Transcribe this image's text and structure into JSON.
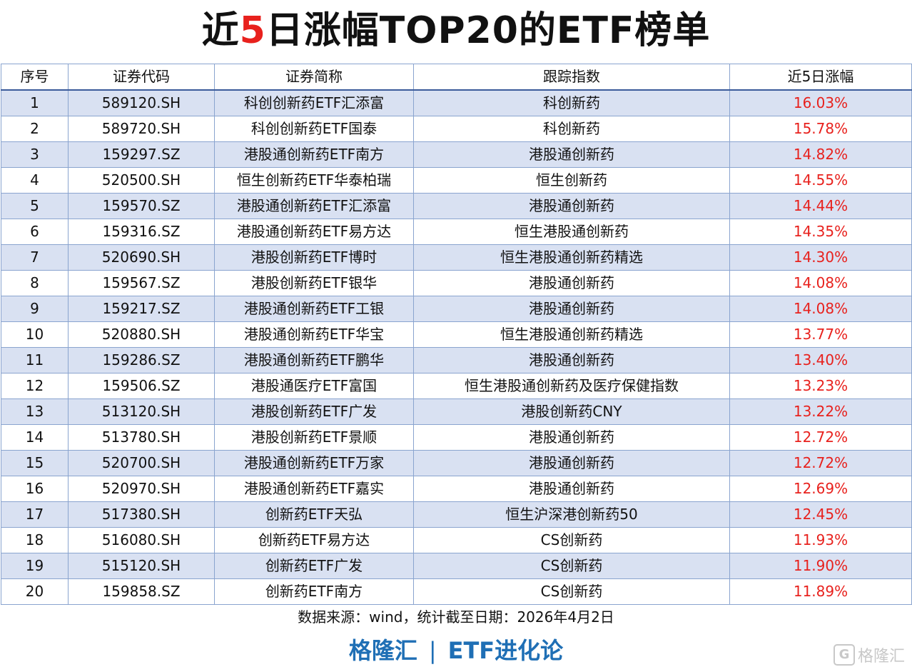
{
  "title": {
    "prefix": "近",
    "highlight": "5",
    "suffix": "日涨幅TOP20的ETF榜单"
  },
  "table": {
    "headers": [
      "序号",
      "证券代码",
      "证券简称",
      "跟踪指数",
      "近5日涨幅"
    ],
    "rows": [
      [
        "1",
        "589120.SH",
        "科创创新药ETF汇添富",
        "科创新药",
        "16.03%"
      ],
      [
        "2",
        "589720.SH",
        "科创创新药ETF国泰",
        "科创新药",
        "15.78%"
      ],
      [
        "3",
        "159297.SZ",
        "港股通创新药ETF南方",
        "港股通创新药",
        "14.82%"
      ],
      [
        "4",
        "520500.SH",
        "恒生创新药ETF华泰柏瑞",
        "恒生创新药",
        "14.55%"
      ],
      [
        "5",
        "159570.SZ",
        "港股通创新药ETF汇添富",
        "港股通创新药",
        "14.44%"
      ],
      [
        "6",
        "159316.SZ",
        "港股通创新药ETF易方达",
        "恒生港股通创新药",
        "14.35%"
      ],
      [
        "7",
        "520690.SH",
        "港股创新药ETF博时",
        "恒生港股通创新药精选",
        "14.30%"
      ],
      [
        "8",
        "159567.SZ",
        "港股创新药ETF银华",
        "港股通创新药",
        "14.08%"
      ],
      [
        "9",
        "159217.SZ",
        "港股通创新药ETF工银",
        "港股通创新药",
        "14.08%"
      ],
      [
        "10",
        "520880.SH",
        "港股通创新药ETF华宝",
        "恒生港股通创新药精选",
        "13.77%"
      ],
      [
        "11",
        "159286.SZ",
        "港股通创新药ETF鹏华",
        "港股通创新药",
        "13.40%"
      ],
      [
        "12",
        "159506.SZ",
        "港股通医疗ETF富国",
        "恒生港股通创新药及医疗保健指数",
        "13.23%"
      ],
      [
        "13",
        "513120.SH",
        "港股创新药ETF广发",
        "港股创新药CNY",
        "13.22%"
      ],
      [
        "14",
        "513780.SH",
        "港股创新药ETF景顺",
        "港股通创新药",
        "12.72%"
      ],
      [
        "15",
        "520700.SH",
        "港股通创新药ETF万家",
        "港股通创新药",
        "12.72%"
      ],
      [
        "16",
        "520970.SH",
        "港股通创新药ETF嘉实",
        "港股通创新药",
        "12.69%"
      ],
      [
        "17",
        "517380.SH",
        "创新药ETF天弘",
        "恒生沪深港创新药50",
        "12.45%"
      ],
      [
        "18",
        "516080.SH",
        "创新药ETF易方达",
        "CS创新药",
        "11.93%"
      ],
      [
        "19",
        "515120.SH",
        "创新药ETF广发",
        "CS创新药",
        "11.90%"
      ],
      [
        "20",
        "159858.SZ",
        "创新药ETF南方",
        "CS创新药",
        "11.89%"
      ]
    ]
  },
  "source": "数据来源：wind，统计截至日期：2026年4月2日",
  "footer": {
    "left": "格隆汇",
    "separator": "|",
    "right": "ETF进化论"
  },
  "watermark": {
    "icon": "G",
    "text": "格隆汇"
  },
  "colors": {
    "accent_red": "#e8211d",
    "row_stripe": "#d9e1f2",
    "footer_blue": "#1f6fb5",
    "grid_line": "#8aa4cf"
  }
}
